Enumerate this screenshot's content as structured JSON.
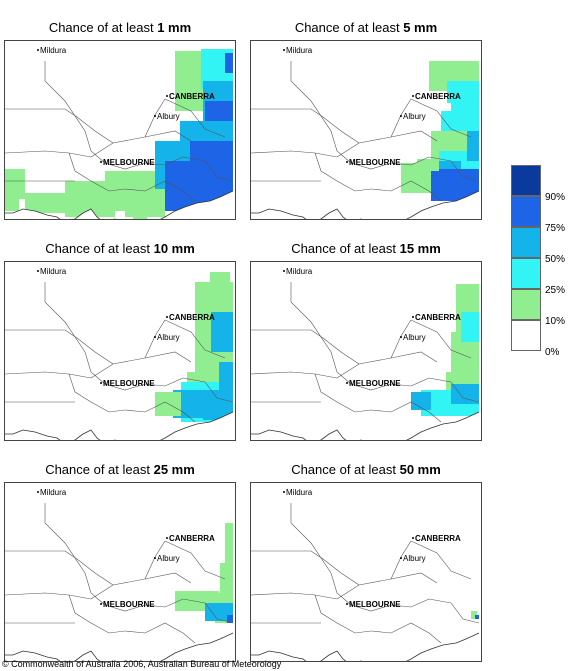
{
  "panels": [
    {
      "title_prefix": "Chance of at least ",
      "title_value": "1 mm"
    },
    {
      "title_prefix": "Chance of at least ",
      "title_value": "5 mm"
    },
    {
      "title_prefix": "Chance of at least ",
      "title_value": "10 mm"
    },
    {
      "title_prefix": "Chance of at least ",
      "title_value": "15 mm"
    },
    {
      "title_prefix": "Chance of at least ",
      "title_value": "25 mm"
    },
    {
      "title_prefix": "Chance of at least ",
      "title_value": "50 mm"
    }
  ],
  "places": {
    "mildura": "Mildura",
    "canberra": "CANBERRA",
    "albury": "Albury",
    "melbourne": "MELBOURNE"
  },
  "legend": {
    "labels": [
      "90%",
      "75%",
      "50%",
      "25%",
      "10%",
      "0%"
    ],
    "colors": [
      "#0a3a9e",
      "#1e64e6",
      "#14b4ea",
      "#32f4f4",
      "#90ee90",
      "#ffffff"
    ]
  },
  "copyright": "© Commonwealth of Australia 2006, Australian Bureau of Meteorology"
}
